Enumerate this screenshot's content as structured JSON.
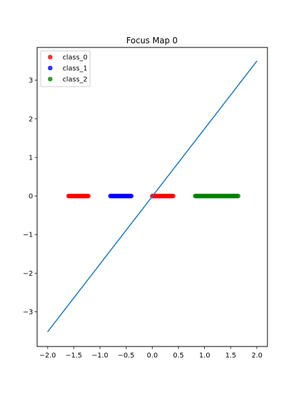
{
  "chart_data": {
    "type": "scatter",
    "title": "Focus Map 0",
    "xlabel": "",
    "ylabel": "",
    "xlim": [
      -2.2,
      2.2
    ],
    "ylim": [
      -3.9,
      3.85
    ],
    "x_ticks": [
      -2.0,
      -1.5,
      -1.0,
      -0.5,
      0.0,
      0.5,
      1.0,
      1.5,
      2.0
    ],
    "x_tick_labels": [
      "−2.0",
      "−1.5",
      "−1.0",
      "−0.5",
      "0.0",
      "0.5",
      "1.0",
      "1.5",
      "2.0"
    ],
    "y_ticks": [
      -3,
      -2,
      -1,
      0,
      1,
      2,
      3
    ],
    "y_tick_labels": [
      "−3",
      "−2",
      "−1",
      "0",
      "1",
      "2",
      "3"
    ],
    "grid": false,
    "legend_position": "top-left",
    "series": [
      {
        "name": "class_0",
        "color": "#ff0000",
        "ranges": [
          [
            -1.6,
            -1.22
          ],
          [
            0.0,
            0.4
          ]
        ],
        "y": 0
      },
      {
        "name": "class_1",
        "color": "#0000ff",
        "ranges": [
          [
            -0.8,
            -0.38
          ]
        ],
        "y": 0
      },
      {
        "name": "class_2",
        "color": "#008000",
        "ranges": [
          [
            0.82,
            1.64
          ]
        ],
        "y": 0
      }
    ],
    "line": {
      "color": "#1f77b4",
      "x": [
        -2.0,
        2.0
      ],
      "y": [
        -3.52,
        3.5
      ]
    }
  }
}
